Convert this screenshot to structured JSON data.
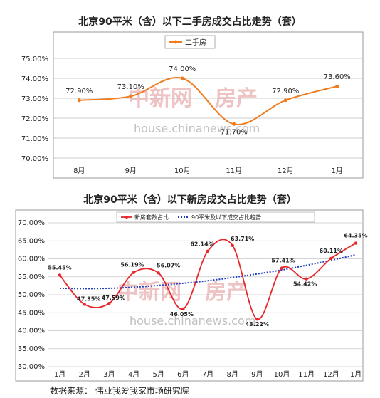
{
  "chart_data": [
    {
      "type": "line",
      "title": "北京90平米（含）以下二手房成交占比走势（套）",
      "categories": [
        "8月",
        "9月",
        "10月",
        "11月",
        "12月",
        "1月"
      ],
      "series": [
        {
          "name": "二手房",
          "values": [
            72.9,
            73.1,
            74.0,
            71.7,
            72.9,
            73.6
          ],
          "color": "#f07c1e"
        }
      ],
      "data_labels": [
        "72.90%",
        "73.10%",
        "74.00%",
        "71.70%",
        "72.90%",
        "73.60%"
      ],
      "ylim": [
        70,
        75
      ],
      "yticks": [
        "70.00%",
        "71.00%",
        "72.00%",
        "73.00%",
        "74.00%",
        "75.00%"
      ],
      "grid": true,
      "legend": "top-center"
    },
    {
      "type": "line",
      "title": "北京90平米（含）以下新房成交占比走势（套）",
      "categories": [
        "1月",
        "2月",
        "3月",
        "4月",
        "5月",
        "6月",
        "7月",
        "8月",
        "9月",
        "10月",
        "11月",
        "12月",
        "1月"
      ],
      "series": [
        {
          "name": "新房套数占比",
          "values": [
            55.45,
            47.35,
            47.59,
            56.19,
            56.07,
            46.05,
            62.14,
            63.71,
            43.22,
            57.41,
            54.42,
            60.11,
            64.35
          ],
          "color": "#e8262a"
        },
        {
          "name": "90平米及以下成交占比趋势",
          "values": [
            51.8,
            51.7,
            51.8,
            52.1,
            52.6,
            53.2,
            53.9,
            54.8,
            55.8,
            56.9,
            58.2,
            59.6,
            61.1
          ],
          "color": "#1f3fbf"
        }
      ],
      "data_labels": [
        "55.45%",
        "47.35%",
        "47.59%",
        "56.19%",
        "56.07%",
        "46.05%",
        "62.14%",
        "63.71%",
        "43.22%",
        "57.41%",
        "54.42%",
        "60.11%",
        "64.35%"
      ],
      "ylim": [
        30,
        70
      ],
      "yticks": [
        "30.00%",
        "35.00%",
        "40.00%",
        "45.00%",
        "50.00%",
        "55.00%",
        "60.00%",
        "65.00%",
        "70.00%"
      ],
      "grid": true,
      "legend": "top-center"
    }
  ],
  "watermark": {
    "cn_left": "中新网",
    "cn_right": "房产",
    "url": "house.chinanews.com"
  },
  "source": "数据来源：  伟业我爱我家市场研究院"
}
